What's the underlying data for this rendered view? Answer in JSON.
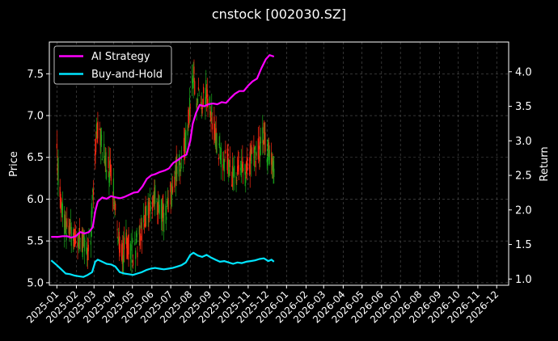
{
  "chart_data": {
    "type": "line",
    "title": "cnstock [002030.SZ]",
    "ylabel_left": "Price",
    "ylabel_right": "Return",
    "ylim_left": [
      4.97,
      7.88
    ],
    "ylim_right": [
      0.91,
      4.43
    ],
    "yticks_left": [
      "5.0",
      "5.5",
      "6.0",
      "6.5",
      "7.0",
      "7.5"
    ],
    "yticks_right": [
      "1.0",
      "1.5",
      "2.0",
      "2.5",
      "3.0",
      "3.5",
      "4.0"
    ],
    "x_start": "2024-12-20",
    "x_end": "2026-12-20",
    "xticks": [
      "2025-01",
      "2025-02",
      "2025-03",
      "2025-04",
      "2025-05",
      "2025-06",
      "2025-07",
      "2025-08",
      "2025-09",
      "2025-10",
      "2025-11",
      "2025-12",
      "2026-01",
      "2026-02",
      "2026-03",
      "2026-04",
      "2026-05",
      "2026-06",
      "2026-07",
      "2026-08",
      "2026-09",
      "2026-10",
      "2026-11",
      "2026-12"
    ],
    "grid": true,
    "legend_position": "top-left",
    "colors": {
      "background": "#000000",
      "candle_up": "#ff2a12",
      "candle_down": "#18a81a",
      "ai_strategy": "#ff00ff",
      "buy_and_hold": "#00e5ff",
      "grid": "#555555",
      "axis": "#ffffff"
    },
    "price_path": [
      [
        "2025-01-01",
        6.5
      ],
      [
        "2025-01-06",
        6.1
      ],
      [
        "2025-01-10",
        5.85
      ],
      [
        "2025-01-15",
        5.65
      ],
      [
        "2025-01-20",
        5.75
      ],
      [
        "2025-01-24",
        5.55
      ],
      [
        "2025-02-05",
        5.5
      ],
      [
        "2025-02-12",
        5.45
      ],
      [
        "2025-02-18",
        5.4
      ],
      [
        "2025-02-24",
        5.6
      ],
      [
        "2025-03-02",
        6.3
      ],
      [
        "2025-03-05",
        6.9
      ],
      [
        "2025-03-10",
        6.75
      ],
      [
        "2025-03-15",
        6.6
      ],
      [
        "2025-03-22",
        6.4
      ],
      [
        "2025-03-28",
        6.3
      ],
      [
        "2025-04-03",
        6.0
      ],
      [
        "2025-04-08",
        5.5
      ],
      [
        "2025-04-14",
        5.35
      ],
      [
        "2025-04-20",
        5.45
      ],
      [
        "2025-04-27",
        5.4
      ],
      [
        "2025-05-05",
        5.35
      ],
      [
        "2025-05-12",
        5.55
      ],
      [
        "2025-05-20",
        5.8
      ],
      [
        "2025-05-28",
        5.95
      ],
      [
        "2025-06-05",
        6.05
      ],
      [
        "2025-06-12",
        5.9
      ],
      [
        "2025-06-20",
        5.75
      ],
      [
        "2025-06-27",
        5.9
      ],
      [
        "2025-07-05",
        6.2
      ],
      [
        "2025-07-12",
        6.4
      ],
      [
        "2025-07-20",
        6.5
      ],
      [
        "2025-07-27",
        6.8
      ],
      [
        "2025-08-02",
        7.3
      ],
      [
        "2025-08-06",
        7.5
      ],
      [
        "2025-08-12",
        7.2
      ],
      [
        "2025-08-20",
        7.15
      ],
      [
        "2025-08-28",
        7.3
      ],
      [
        "2025-09-05",
        6.95
      ],
      [
        "2025-09-12",
        6.7
      ],
      [
        "2025-09-20",
        6.45
      ],
      [
        "2025-09-28",
        6.55
      ],
      [
        "2025-10-05",
        6.3
      ],
      [
        "2025-10-12",
        6.25
      ],
      [
        "2025-10-20",
        6.4
      ],
      [
        "2025-10-28",
        6.35
      ],
      [
        "2025-11-05",
        6.45
      ],
      [
        "2025-11-12",
        6.5
      ],
      [
        "2025-11-20",
        6.6
      ],
      [
        "2025-11-26",
        6.8
      ],
      [
        "2025-12-02",
        6.55
      ],
      [
        "2025-12-08",
        6.55
      ],
      [
        "2025-12-12",
        6.4
      ]
    ],
    "series": [
      {
        "name": "AI Strategy",
        "axis": "right",
        "points": [
          [
            "2024-12-23",
            1.61
          ],
          [
            "2025-01-03",
            1.61
          ],
          [
            "2025-01-10",
            1.62
          ],
          [
            "2025-01-17",
            1.62
          ],
          [
            "2025-01-24",
            1.6
          ],
          [
            "2025-01-31",
            1.62
          ],
          [
            "2025-02-07",
            1.68
          ],
          [
            "2025-02-14",
            1.66
          ],
          [
            "2025-02-21",
            1.68
          ],
          [
            "2025-02-27",
            1.75
          ],
          [
            "2025-03-03",
            1.98
          ],
          [
            "2025-03-07",
            2.12
          ],
          [
            "2025-03-14",
            2.18
          ],
          [
            "2025-03-21",
            2.16
          ],
          [
            "2025-03-28",
            2.2
          ],
          [
            "2025-04-05",
            2.18
          ],
          [
            "2025-04-12",
            2.17
          ],
          [
            "2025-04-19",
            2.19
          ],
          [
            "2025-04-26",
            2.22
          ],
          [
            "2025-05-03",
            2.25
          ],
          [
            "2025-05-10",
            2.26
          ],
          [
            "2025-05-17",
            2.34
          ],
          [
            "2025-05-24",
            2.45
          ],
          [
            "2025-05-31",
            2.5
          ],
          [
            "2025-06-07",
            2.52
          ],
          [
            "2025-06-14",
            2.55
          ],
          [
            "2025-06-21",
            2.57
          ],
          [
            "2025-06-28",
            2.6
          ],
          [
            "2025-07-05",
            2.68
          ],
          [
            "2025-07-12",
            2.72
          ],
          [
            "2025-07-19",
            2.77
          ],
          [
            "2025-07-26",
            2.8
          ],
          [
            "2025-08-01",
            3.0
          ],
          [
            "2025-08-05",
            3.25
          ],
          [
            "2025-08-10",
            3.4
          ],
          [
            "2025-08-16",
            3.52
          ],
          [
            "2025-08-23",
            3.5
          ],
          [
            "2025-08-30",
            3.53
          ],
          [
            "2025-09-06",
            3.54
          ],
          [
            "2025-09-13",
            3.53
          ],
          [
            "2025-09-20",
            3.56
          ],
          [
            "2025-09-27",
            3.55
          ],
          [
            "2025-10-04",
            3.62
          ],
          [
            "2025-10-11",
            3.68
          ],
          [
            "2025-10-18",
            3.72
          ],
          [
            "2025-10-25",
            3.72
          ],
          [
            "2025-11-01",
            3.8
          ],
          [
            "2025-11-08",
            3.86
          ],
          [
            "2025-11-15",
            3.9
          ],
          [
            "2025-11-22",
            4.05
          ],
          [
            "2025-11-29",
            4.18
          ],
          [
            "2025-12-05",
            4.24
          ],
          [
            "2025-12-12",
            4.22
          ]
        ]
      },
      {
        "name": "Buy-and-Hold",
        "axis": "right",
        "points": [
          [
            "2024-12-23",
            1.27
          ],
          [
            "2025-01-01",
            1.2
          ],
          [
            "2025-01-08",
            1.14
          ],
          [
            "2025-01-15",
            1.08
          ],
          [
            "2025-01-22",
            1.07
          ],
          [
            "2025-01-29",
            1.05
          ],
          [
            "2025-02-05",
            1.04
          ],
          [
            "2025-02-12",
            1.03
          ],
          [
            "2025-02-19",
            1.06
          ],
          [
            "2025-02-26",
            1.1
          ],
          [
            "2025-03-03",
            1.25
          ],
          [
            "2025-03-07",
            1.28
          ],
          [
            "2025-03-14",
            1.25
          ],
          [
            "2025-03-21",
            1.22
          ],
          [
            "2025-03-28",
            1.21
          ],
          [
            "2025-04-04",
            1.18
          ],
          [
            "2025-04-11",
            1.1
          ],
          [
            "2025-04-18",
            1.08
          ],
          [
            "2025-04-25",
            1.07
          ],
          [
            "2025-05-02",
            1.06
          ],
          [
            "2025-05-09",
            1.08
          ],
          [
            "2025-05-16",
            1.1
          ],
          [
            "2025-05-23",
            1.13
          ],
          [
            "2025-05-30",
            1.15
          ],
          [
            "2025-06-06",
            1.16
          ],
          [
            "2025-06-13",
            1.15
          ],
          [
            "2025-06-20",
            1.14
          ],
          [
            "2025-06-27",
            1.15
          ],
          [
            "2025-07-04",
            1.16
          ],
          [
            "2025-07-11",
            1.18
          ],
          [
            "2025-07-18",
            1.2
          ],
          [
            "2025-07-25",
            1.24
          ],
          [
            "2025-08-01",
            1.35
          ],
          [
            "2025-08-06",
            1.38
          ],
          [
            "2025-08-13",
            1.34
          ],
          [
            "2025-08-20",
            1.32
          ],
          [
            "2025-08-27",
            1.35
          ],
          [
            "2025-09-03",
            1.31
          ],
          [
            "2025-09-10",
            1.28
          ],
          [
            "2025-09-17",
            1.25
          ],
          [
            "2025-09-24",
            1.26
          ],
          [
            "2025-10-01",
            1.24
          ],
          [
            "2025-10-08",
            1.22
          ],
          [
            "2025-10-15",
            1.24
          ],
          [
            "2025-10-22",
            1.23
          ],
          [
            "2025-10-29",
            1.25
          ],
          [
            "2025-11-05",
            1.26
          ],
          [
            "2025-11-12",
            1.27
          ],
          [
            "2025-11-19",
            1.29
          ],
          [
            "2025-11-26",
            1.3
          ],
          [
            "2025-12-03",
            1.26
          ],
          [
            "2025-12-08",
            1.28
          ],
          [
            "2025-12-12",
            1.25
          ]
        ]
      }
    ]
  }
}
